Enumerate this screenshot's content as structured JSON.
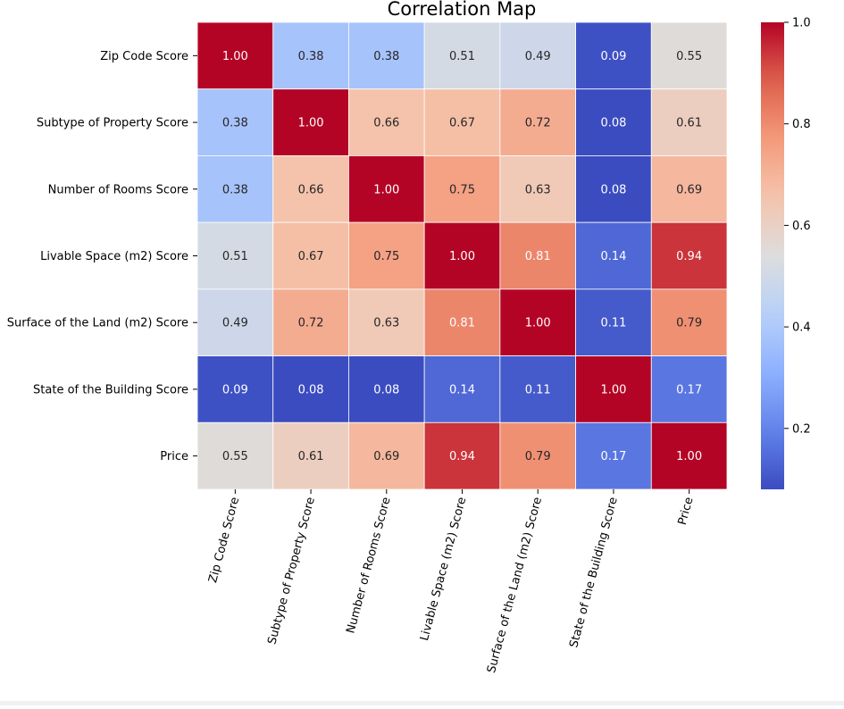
{
  "chart_data": {
    "type": "heatmap",
    "title": "Correlation Map",
    "xlabel": "",
    "ylabel": "",
    "row_labels": [
      "Zip Code Score",
      "Subtype of Property Score",
      "Number of Rooms Score",
      "Livable Space (m2) Score",
      "Surface of the Land (m2) Score",
      "State of the Building Score",
      "Price"
    ],
    "col_labels": [
      "Zip Code Score",
      "Subtype of Property Score",
      "Number of Rooms Score",
      "Livable Space (m2) Score",
      "Surface of the Land (m2) Score",
      "State of the Building Score",
      "Price"
    ],
    "values": [
      [
        1.0,
        0.38,
        0.38,
        0.51,
        0.49,
        0.09,
        0.55
      ],
      [
        0.38,
        1.0,
        0.66,
        0.67,
        0.72,
        0.08,
        0.61
      ],
      [
        0.38,
        0.66,
        1.0,
        0.75,
        0.63,
        0.08,
        0.69
      ],
      [
        0.51,
        0.67,
        0.75,
        1.0,
        0.81,
        0.14,
        0.94
      ],
      [
        0.49,
        0.72,
        0.63,
        0.81,
        1.0,
        0.11,
        0.79
      ],
      [
        0.09,
        0.08,
        0.08,
        0.14,
        0.11,
        1.0,
        0.17
      ],
      [
        0.55,
        0.61,
        0.69,
        0.94,
        0.79,
        0.17,
        1.0
      ]
    ],
    "value_format": "0.00",
    "colormap": "coolwarm",
    "colorbar": {
      "range": [
        0.08,
        1.0
      ],
      "ticks": [
        0.2,
        0.4,
        0.6,
        0.8,
        1.0
      ],
      "tick_labels": [
        "0.2",
        "0.4",
        "0.6",
        "0.8",
        "1.0"
      ]
    },
    "grid": true,
    "x_tick_rotation": "75 degrees"
  }
}
